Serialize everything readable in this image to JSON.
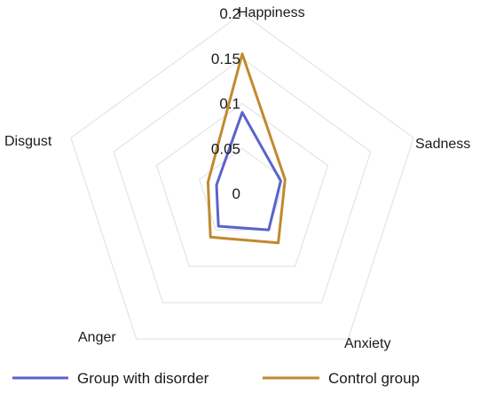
{
  "chart_data": {
    "type": "radar",
    "categories": [
      "Happiness",
      "Sadness",
      "Anxiety",
      "Anger",
      "Disgust"
    ],
    "rlim": [
      0,
      0.2
    ],
    "rticks": [
      "0",
      "0.05",
      "0.1",
      "0.15",
      "0.2"
    ],
    "grid": true,
    "legend_position": "bottom",
    "series": [
      {
        "name": "Group with disorder",
        "color": "#5b63c9",
        "values": [
          0.09,
          0.045,
          0.05,
          0.045,
          0.03
        ]
      },
      {
        "name": "Control group",
        "color": "#c08a2e",
        "values": [
          0.155,
          0.05,
          0.068,
          0.06,
          0.04
        ]
      }
    ]
  }
}
